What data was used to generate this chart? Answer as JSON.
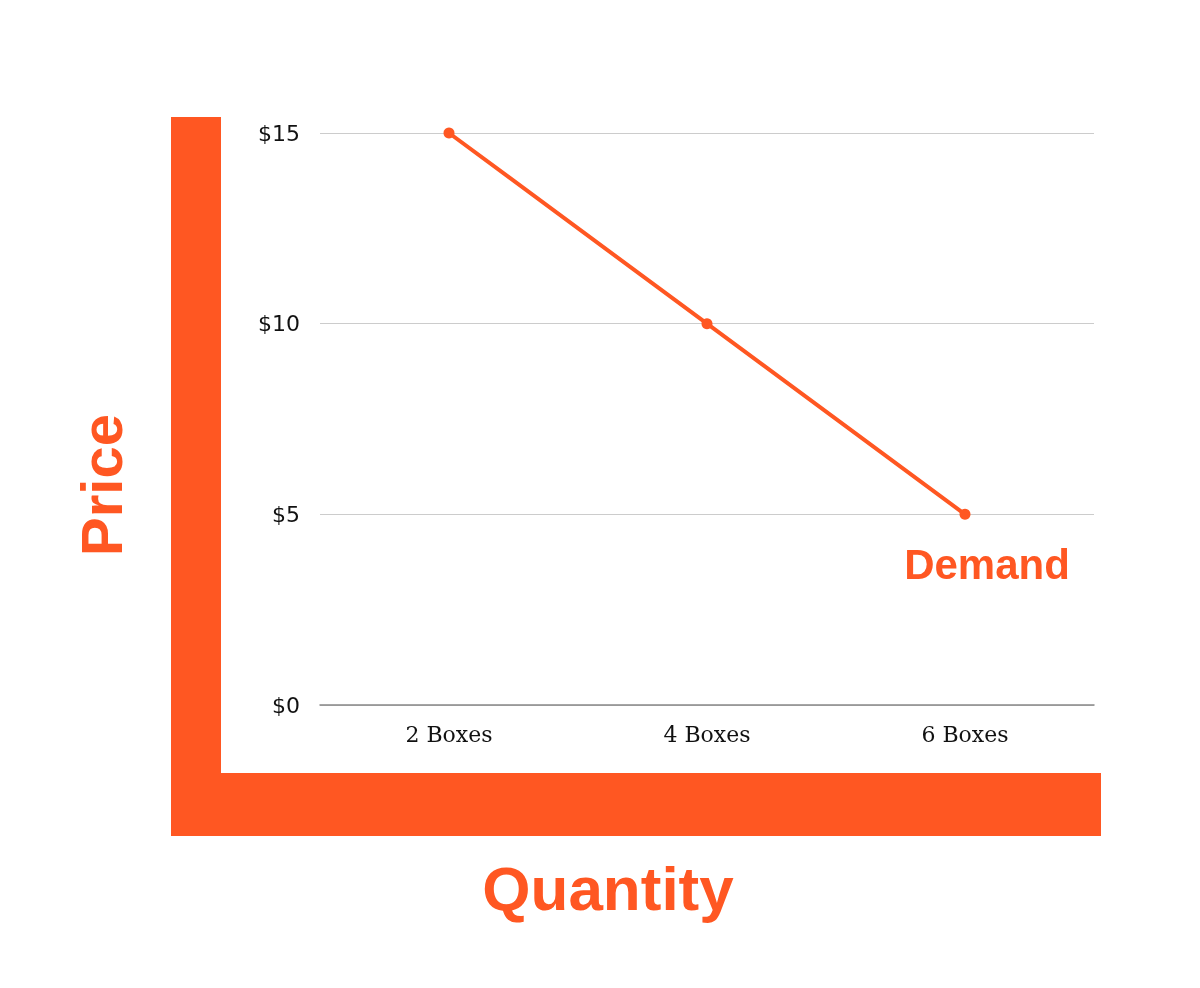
{
  "chart_data": {
    "type": "line",
    "xlabel": "Quantity",
    "ylabel": "Price",
    "categories": [
      "2 Boxes",
      "4 Boxes",
      "6 Boxes"
    ],
    "series": [
      {
        "name": "Demand",
        "color": "#ff5722",
        "values": [
          15,
          10,
          5
        ]
      }
    ],
    "ylim": [
      0,
      15
    ],
    "yticks": [
      {
        "value": 0,
        "label": "$0"
      },
      {
        "value": 5,
        "label": "$5"
      },
      {
        "value": 10,
        "label": "$10"
      },
      {
        "value": 15,
        "label": "$15"
      }
    ],
    "grid": "y",
    "legend": false,
    "marker": "circle",
    "line_style": "solid"
  }
}
